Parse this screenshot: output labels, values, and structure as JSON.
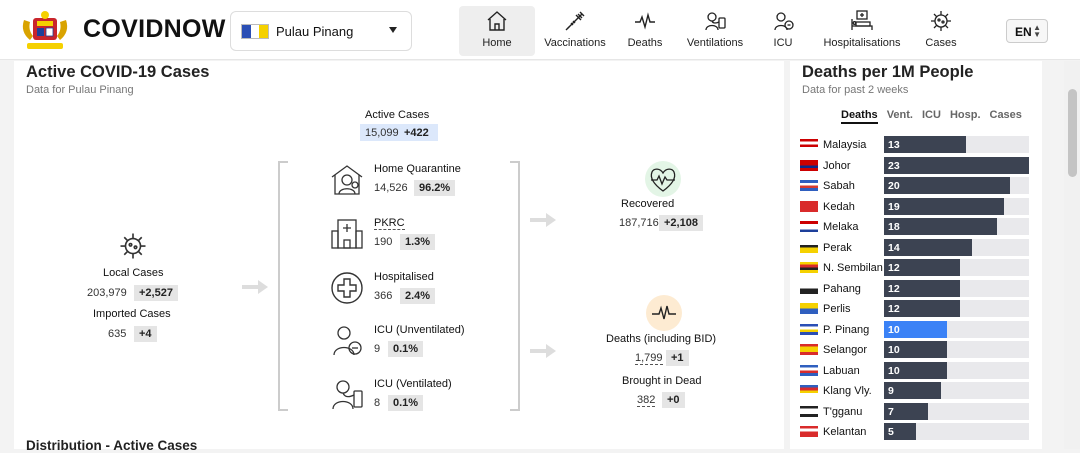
{
  "header": {
    "brand": "COVIDNOW",
    "state_select": {
      "value": "Pulau Pinang",
      "flag_colors": [
        "#2b4fb5",
        "#ffffff",
        "#f5d100"
      ]
    },
    "nav": [
      {
        "label": "Home",
        "icon": "home-icon",
        "active": true
      },
      {
        "label": "Vaccinations",
        "icon": "syringe-icon",
        "active": false
      },
      {
        "label": "Deaths",
        "icon": "pulse-icon",
        "active": false
      },
      {
        "label": "Ventilations",
        "icon": "ventilator-icon",
        "active": false
      },
      {
        "label": "ICU",
        "icon": "icu-icon",
        "active": false
      },
      {
        "label": "Hospitalisations",
        "icon": "hospital-bed-icon",
        "active": false
      },
      {
        "label": "Cases",
        "icon": "virus-icon",
        "active": false
      }
    ],
    "language": "EN"
  },
  "active_panel": {
    "title": "Active COVID-19 Cases",
    "subtitle": "Data for Pulau Pinang",
    "active": {
      "label": "Active Cases",
      "value": "15,099",
      "delta": "+422"
    },
    "local": {
      "label": "Local Cases",
      "value": "203,979",
      "delta": "+2,527"
    },
    "imported": {
      "label": "Imported Cases",
      "value": "635",
      "delta": "+4"
    },
    "home_quarantine": {
      "label": "Home Quarantine",
      "value": "14,526",
      "pct": "96.2%"
    },
    "pkrc": {
      "label": "PKRC",
      "value": "190",
      "pct": "1.3%"
    },
    "hospitalised": {
      "label": "Hospitalised",
      "value": "366",
      "pct": "2.4%"
    },
    "icu_unventilated": {
      "label": "ICU (Unventilated)",
      "value": "9",
      "pct": "0.1%"
    },
    "icu_ventilated": {
      "label": "ICU (Ventilated)",
      "value": "8",
      "pct": "0.1%"
    },
    "recovered": {
      "label": "Recovered",
      "value": "187,716",
      "delta": "+2,108"
    },
    "deaths": {
      "label": "Deaths (including BID)",
      "value": "1,799",
      "delta": "+1"
    },
    "bid": {
      "label": "Brought in Dead",
      "value": "382",
      "delta": "+0"
    },
    "next_section": "Distribution - Active Cases"
  },
  "deaths_panel": {
    "title": "Deaths per 1M People",
    "subtitle": "Data for past 2 weeks",
    "tabs": [
      "Deaths",
      "Vent.",
      "ICU",
      "Hosp.",
      "Cases"
    ],
    "active_tab": "Deaths",
    "highlight_color": "#3b82f6",
    "bar_color": "#3c4352"
  },
  "chart_data": {
    "type": "bar",
    "orientation": "horizontal",
    "categories": [
      "Malaysia",
      "Johor",
      "Sabah",
      "Kedah",
      "Melaka",
      "Perak",
      "N. Sembilan",
      "Pahang",
      "Perlis",
      "P. Pinang",
      "Selangor",
      "Labuan",
      "Klang Vly.",
      "T'gganu",
      "Kelantan"
    ],
    "values": [
      13,
      23,
      20,
      19,
      18,
      14,
      12,
      12,
      12,
      10,
      10,
      10,
      9,
      7,
      5
    ],
    "highlight": "P. Pinang",
    "xlim": [
      0,
      23
    ]
  }
}
